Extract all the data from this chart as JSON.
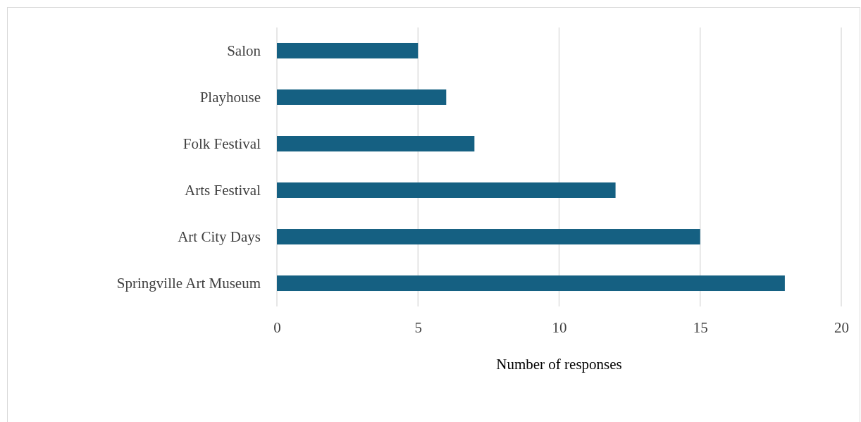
{
  "chart_data": {
    "type": "bar",
    "orientation": "horizontal",
    "xlabel": "Number of responses",
    "categories": [
      "Salon",
      "Playhouse",
      "Folk Festival",
      "Arts Festival",
      "Art City Days",
      "Springville Art Museum"
    ],
    "values": [
      5,
      6,
      7,
      12,
      15,
      18
    ],
    "color": "#156082",
    "xlim": [
      0,
      20
    ],
    "xticks": [
      0,
      5,
      10,
      15,
      20
    ],
    "grid": "x"
  }
}
